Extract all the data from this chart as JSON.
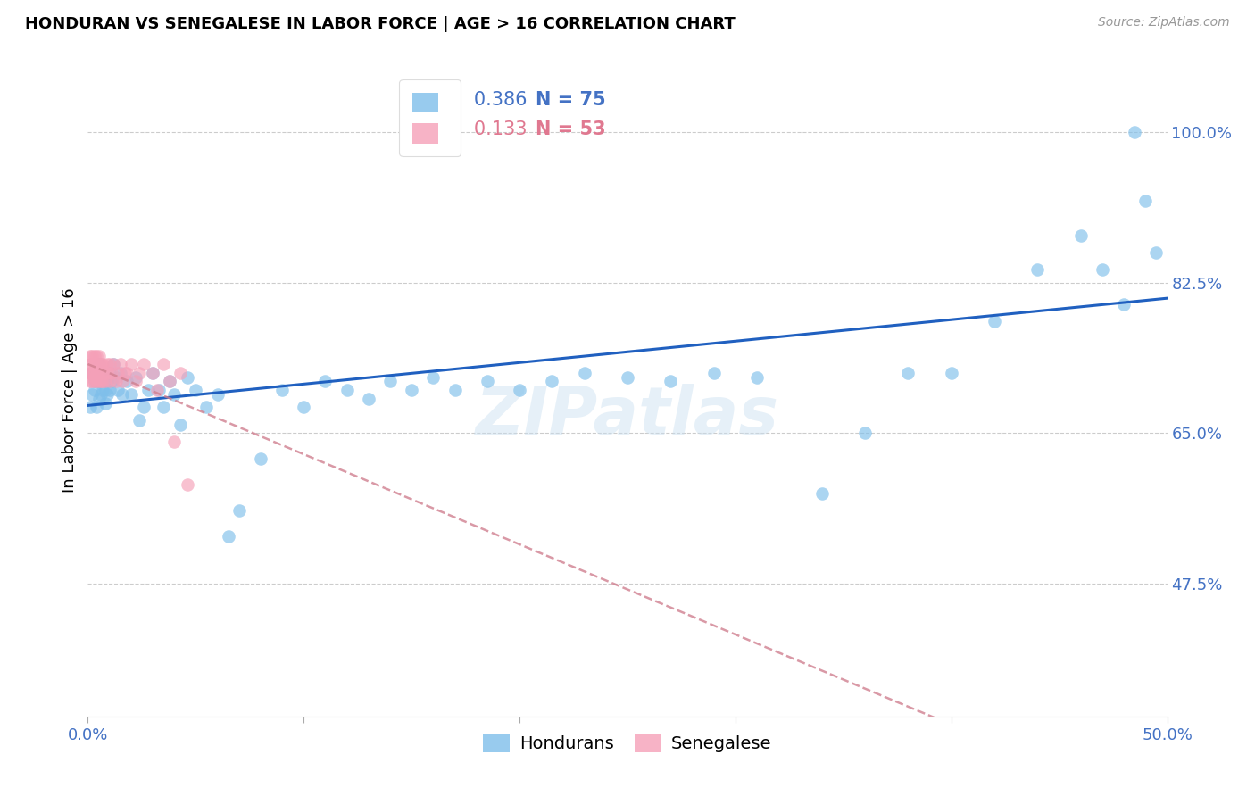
{
  "title": "HONDURAN VS SENEGALESE IN LABOR FORCE | AGE > 16 CORRELATION CHART",
  "source": "Source: ZipAtlas.com",
  "ylabel": "In Labor Force | Age > 16",
  "watermark": "ZIPatlas",
  "xlim": [
    0.0,
    0.5
  ],
  "ylim": [
    0.32,
    1.08
  ],
  "ytick_positions": [
    0.475,
    0.65,
    0.825,
    1.0
  ],
  "ytick_labels": [
    "47.5%",
    "65.0%",
    "82.5%",
    "100.0%"
  ],
  "xtick_positions": [
    0.0,
    0.1,
    0.2,
    0.3,
    0.4,
    0.5
  ],
  "xticklabels": [
    "0.0%",
    "",
    "",
    "",
    "",
    "50.0%"
  ],
  "grid_color": "#cccccc",
  "blue_color": "#7fbfea",
  "pink_color": "#f5a0b8",
  "trend_blue": "#2060c0",
  "trend_pink": "#d08090",
  "legend_R_blue": "0.386",
  "legend_N_blue": "75",
  "legend_R_pink": "0.133",
  "legend_N_pink": "53",
  "honduran_x": [
    0.001,
    0.002,
    0.002,
    0.003,
    0.003,
    0.004,
    0.004,
    0.005,
    0.005,
    0.005,
    0.006,
    0.006,
    0.007,
    0.007,
    0.008,
    0.008,
    0.008,
    0.009,
    0.009,
    0.01,
    0.01,
    0.011,
    0.012,
    0.013,
    0.014,
    0.015,
    0.016,
    0.018,
    0.02,
    0.022,
    0.024,
    0.026,
    0.028,
    0.03,
    0.033,
    0.035,
    0.038,
    0.04,
    0.043,
    0.046,
    0.05,
    0.055,
    0.06,
    0.065,
    0.07,
    0.08,
    0.09,
    0.1,
    0.11,
    0.12,
    0.13,
    0.14,
    0.15,
    0.16,
    0.17,
    0.185,
    0.2,
    0.215,
    0.23,
    0.25,
    0.27,
    0.29,
    0.31,
    0.34,
    0.36,
    0.38,
    0.4,
    0.42,
    0.44,
    0.46,
    0.47,
    0.48,
    0.485,
    0.49,
    0.495
  ],
  "honduran_y": [
    0.68,
    0.695,
    0.72,
    0.7,
    0.71,
    0.715,
    0.68,
    0.69,
    0.71,
    0.73,
    0.695,
    0.715,
    0.7,
    0.72,
    0.685,
    0.7,
    0.715,
    0.695,
    0.71,
    0.7,
    0.72,
    0.71,
    0.73,
    0.715,
    0.7,
    0.72,
    0.695,
    0.71,
    0.695,
    0.715,
    0.665,
    0.68,
    0.7,
    0.72,
    0.7,
    0.68,
    0.71,
    0.695,
    0.66,
    0.715,
    0.7,
    0.68,
    0.695,
    0.53,
    0.56,
    0.62,
    0.7,
    0.68,
    0.71,
    0.7,
    0.69,
    0.71,
    0.7,
    0.715,
    0.7,
    0.71,
    0.7,
    0.71,
    0.72,
    0.715,
    0.71,
    0.72,
    0.715,
    0.58,
    0.65,
    0.72,
    0.72,
    0.78,
    0.84,
    0.88,
    0.84,
    0.8,
    1.0,
    0.92,
    0.86
  ],
  "senegalese_x": [
    0.001,
    0.001,
    0.001,
    0.001,
    0.002,
    0.002,
    0.002,
    0.002,
    0.002,
    0.003,
    0.003,
    0.003,
    0.003,
    0.003,
    0.004,
    0.004,
    0.004,
    0.004,
    0.005,
    0.005,
    0.005,
    0.005,
    0.006,
    0.006,
    0.006,
    0.007,
    0.007,
    0.007,
    0.008,
    0.008,
    0.009,
    0.009,
    0.01,
    0.01,
    0.011,
    0.012,
    0.013,
    0.014,
    0.015,
    0.016,
    0.017,
    0.018,
    0.02,
    0.022,
    0.024,
    0.026,
    0.03,
    0.032,
    0.035,
    0.038,
    0.04,
    0.043,
    0.046
  ],
  "senegalese_y": [
    0.72,
    0.73,
    0.74,
    0.71,
    0.72,
    0.73,
    0.71,
    0.74,
    0.72,
    0.73,
    0.71,
    0.72,
    0.74,
    0.715,
    0.72,
    0.73,
    0.71,
    0.74,
    0.72,
    0.73,
    0.71,
    0.74,
    0.725,
    0.71,
    0.73,
    0.72,
    0.71,
    0.73,
    0.72,
    0.71,
    0.73,
    0.72,
    0.73,
    0.71,
    0.72,
    0.73,
    0.71,
    0.72,
    0.73,
    0.71,
    0.72,
    0.72,
    0.73,
    0.71,
    0.72,
    0.73,
    0.72,
    0.7,
    0.73,
    0.71,
    0.64,
    0.72,
    0.59
  ]
}
